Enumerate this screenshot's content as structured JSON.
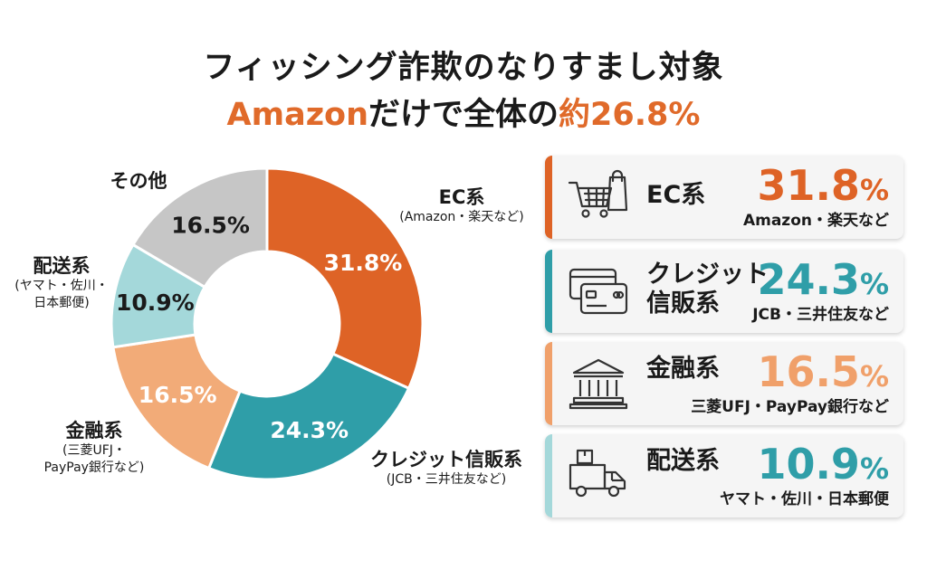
{
  "title": {
    "line1": "フィッシング詐欺のなりすまし対象",
    "line2_prefix": "Amazon",
    "line2_mid": "だけで全体の",
    "line2_suffix": "約26.8%"
  },
  "chart_data": {
    "type": "pie",
    "title": "フィッシング詐欺のなりすまし対象",
    "subtitle": "Amazonだけで全体の約26.8%",
    "legend": "right",
    "slices": [
      {
        "name": "EC系",
        "sub": "(Amazon・楽天など)",
        "value": 31.8,
        "label": "31.8%",
        "color": "#de6326"
      },
      {
        "name": "クレジット信販系",
        "sub": "(JCB・三井住友など)",
        "value": 24.3,
        "label": "24.3%",
        "color": "#2f9ea8"
      },
      {
        "name": "金融系",
        "sub": "(三菱UFJ・\nPayPay銀行など)",
        "value": 16.5,
        "label": "16.5%",
        "color": "#f2ab78"
      },
      {
        "name": "配送系",
        "sub": "(ヤマト・佐川・\n日本郵便)",
        "value": 10.9,
        "label": "10.9%",
        "color": "#a4d8da"
      },
      {
        "name": "その他",
        "sub": "",
        "value": 16.5,
        "label": "16.5%",
        "color": "#c6c6c6"
      }
    ]
  },
  "cards": [
    {
      "icon": "shopping-cart-bag-icon",
      "name": "EC系",
      "pct": "31.8",
      "unit": "%",
      "sub": "Amazon・楽天など",
      "color": "#de6326"
    },
    {
      "icon": "credit-card-icon",
      "name": "クレジット\n信販系",
      "pct": "24.3",
      "unit": "%",
      "sub": "JCB・三井住友など",
      "color": "#2f9ea8"
    },
    {
      "icon": "bank-icon",
      "name": "金融系",
      "pct": "16.5",
      "unit": "%",
      "sub": "三菱UFJ・PayPay銀行など",
      "color": "#f0a06a"
    },
    {
      "icon": "delivery-truck-icon",
      "name": "配送系",
      "pct": "10.9",
      "unit": "%",
      "sub": "ヤマト・佐川・日本郵便",
      "color": "#2f9ea8"
    }
  ]
}
